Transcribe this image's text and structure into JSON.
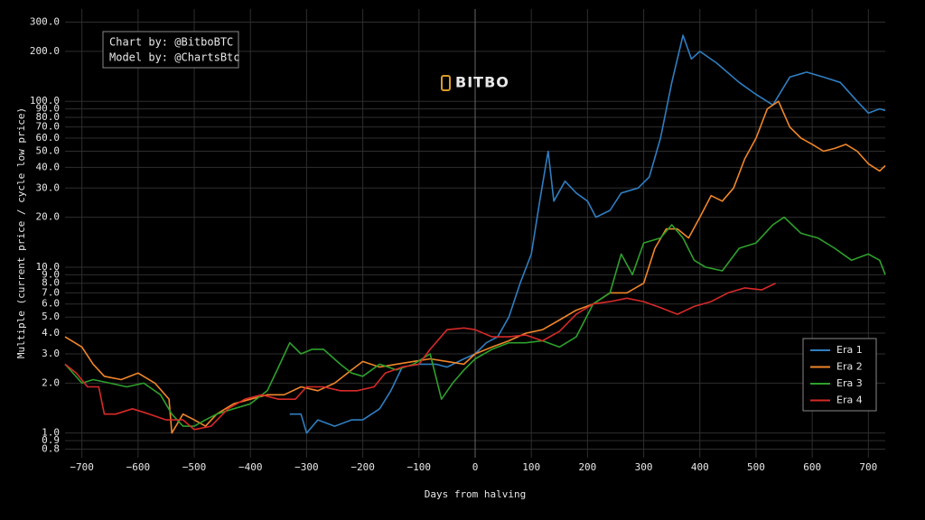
{
  "chart_data": {
    "type": "line",
    "xlabel": "Days from halving",
    "ylabel": "Multiple (current price / cycle low price)",
    "annotations": [
      "Chart by: @BitboBTC",
      "Model by: @ChartsBtc"
    ],
    "watermark": "BITBO",
    "log_y": true,
    "grid": true,
    "legend": "lower right",
    "xlim": [
      -730,
      730
    ],
    "ylim": [
      0.71,
      360
    ],
    "xticks": [
      {
        "value": -700,
        "label": "−700"
      },
      {
        "value": -600,
        "label": "−600"
      },
      {
        "value": -500,
        "label": "−500"
      },
      {
        "value": -400,
        "label": "−400"
      },
      {
        "value": -300,
        "label": "−300"
      },
      {
        "value": -200,
        "label": "−200"
      },
      {
        "value": -100,
        "label": "−100"
      },
      0,
      100,
      200,
      300,
      400,
      500,
      600,
      700
    ],
    "yticks": [
      0.8,
      0.9,
      {
        "value": 1,
        "label": "1.0"
      },
      {
        "value": 2,
        "label": "2.0"
      },
      {
        "value": 3,
        "label": "3.0"
      },
      {
        "value": 4,
        "label": "4.0"
      },
      {
        "value": 5,
        "label": "5.0"
      },
      {
        "value": 6,
        "label": "6.0"
      },
      {
        "value": 7,
        "label": "7.0"
      },
      {
        "value": 8,
        "label": "8.0"
      },
      {
        "value": 9,
        "label": "9.0"
      },
      {
        "value": 10,
        "label": "10.0"
      },
      {
        "value": 20,
        "label": "20.0"
      },
      {
        "value": 30,
        "label": "30.0"
      },
      {
        "value": 40,
        "label": "40.0"
      },
      {
        "value": 50,
        "label": "50.0"
      },
      {
        "value": 60,
        "label": "60.0"
      },
      {
        "value": 70,
        "label": "70.0"
      },
      {
        "value": 80,
        "label": "80.0"
      },
      {
        "value": 90,
        "label": "90.0"
      },
      {
        "value": 100,
        "label": "100.0"
      },
      {
        "value": 200,
        "label": "200.0"
      },
      {
        "value": 300,
        "label": "300.0"
      }
    ],
    "series": [
      {
        "name": "Era 1",
        "color": "#2f7ec1",
        "x": [
          -330,
          -310,
          -300,
          -280,
          -250,
          -220,
          -200,
          -170,
          -150,
          -130,
          -100,
          -70,
          -50,
          -20,
          0,
          20,
          40,
          60,
          80,
          100,
          115,
          130,
          140,
          160,
          180,
          200,
          215,
          240,
          260,
          290,
          310,
          330,
          350,
          370,
          385,
          400,
          430,
          470,
          500,
          530,
          560,
          590,
          620,
          650,
          680,
          700,
          720,
          730
        ],
        "values": [
          1.3,
          1.3,
          1.0,
          1.2,
          1.1,
          1.2,
          1.2,
          1.4,
          1.8,
          2.5,
          2.6,
          2.6,
          2.5,
          2.8,
          3.0,
          3.5,
          3.8,
          5,
          8,
          12,
          25,
          50,
          25,
          33,
          28,
          25,
          20,
          22,
          28,
          30,
          35,
          60,
          130,
          250,
          180,
          200,
          170,
          130,
          110,
          95,
          140,
          150,
          140,
          130,
          100,
          85,
          90,
          88
        ]
      },
      {
        "name": "Era 2",
        "color": "#f0862a",
        "x": [
          -730,
          -700,
          -680,
          -660,
          -630,
          -600,
          -570,
          -545,
          -540,
          -520,
          -500,
          -480,
          -460,
          -430,
          -400,
          -370,
          -340,
          -310,
          -280,
          -250,
          -220,
          -200,
          -170,
          -140,
          -110,
          -80,
          -50,
          -20,
          0,
          30,
          60,
          90,
          120,
          150,
          180,
          210,
          240,
          270,
          300,
          320,
          340,
          360,
          380,
          400,
          420,
          440,
          460,
          480,
          500,
          520,
          540,
          560,
          580,
          600,
          620,
          640,
          660,
          680,
          700,
          720,
          730
        ],
        "values": [
          3.8,
          3.3,
          2.6,
          2.2,
          2.1,
          2.3,
          2.0,
          1.6,
          1.0,
          1.3,
          1.2,
          1.1,
          1.3,
          1.5,
          1.6,
          1.7,
          1.7,
          1.9,
          1.8,
          2.0,
          2.4,
          2.7,
          2.5,
          2.6,
          2.7,
          2.8,
          2.7,
          2.6,
          3.0,
          3.3,
          3.6,
          4.0,
          4.2,
          4.8,
          5.5,
          6,
          7,
          7,
          8,
          13,
          17,
          17,
          15,
          20,
          27,
          25,
          30,
          45,
          60,
          90,
          100,
          70,
          60,
          55,
          50,
          52,
          55,
          50,
          42,
          38,
          41
        ]
      },
      {
        "name": "Era 3",
        "color": "#2ea02c",
        "x": [
          -730,
          -700,
          -680,
          -650,
          -620,
          -590,
          -560,
          -540,
          -520,
          -500,
          -480,
          -460,
          -430,
          -400,
          -370,
          -350,
          -330,
          -310,
          -290,
          -270,
          -240,
          -220,
          -200,
          -170,
          -140,
          -110,
          -80,
          -60,
          -40,
          -20,
          0,
          30,
          60,
          90,
          120,
          150,
          180,
          210,
          240,
          260,
          280,
          300,
          330,
          350,
          370,
          390,
          410,
          440,
          470,
          500,
          530,
          550,
          580,
          610,
          640,
          670,
          700,
          720,
          730
        ],
        "values": [
          2.6,
          2.0,
          2.1,
          2.0,
          1.9,
          2.0,
          1.7,
          1.3,
          1.1,
          1.1,
          1.2,
          1.3,
          1.4,
          1.5,
          1.8,
          2.5,
          3.5,
          3.0,
          3.2,
          3.2,
          2.6,
          2.3,
          2.2,
          2.6,
          2.4,
          2.6,
          3.0,
          1.6,
          2.0,
          2.4,
          2.8,
          3.2,
          3.5,
          3.5,
          3.6,
          3.3,
          3.8,
          6,
          7,
          12,
          9,
          14,
          15,
          18,
          15,
          11,
          10,
          9.5,
          13,
          14,
          18,
          20,
          16,
          15,
          13,
          11,
          12,
          11,
          9
        ]
      },
      {
        "name": "Era 4",
        "color": "#d62a28",
        "x": [
          -730,
          -710,
          -690,
          -670,
          -660,
          -640,
          -610,
          -580,
          -550,
          -520,
          -500,
          -470,
          -440,
          -410,
          -380,
          -350,
          -320,
          -300,
          -270,
          -240,
          -210,
          -180,
          -160,
          -130,
          -100,
          -80,
          -50,
          -20,
          0,
          30,
          60,
          90,
          120,
          150,
          180,
          210,
          240,
          270,
          300,
          330,
          360,
          390,
          420,
          450,
          480,
          510,
          535
        ],
        "values": [
          2.6,
          2.3,
          1.9,
          1.9,
          1.3,
          1.3,
          1.4,
          1.3,
          1.2,
          1.2,
          1.05,
          1.1,
          1.4,
          1.6,
          1.7,
          1.6,
          1.6,
          1.9,
          1.9,
          1.8,
          1.8,
          1.9,
          2.3,
          2.5,
          2.6,
          3.2,
          4.2,
          4.3,
          4.2,
          3.8,
          3.8,
          3.9,
          3.6,
          4.1,
          5.2,
          6,
          6.2,
          6.5,
          6.2,
          5.7,
          5.2,
          5.8,
          6.2,
          7.0,
          7.5,
          7.3,
          8.0
        ]
      }
    ]
  }
}
